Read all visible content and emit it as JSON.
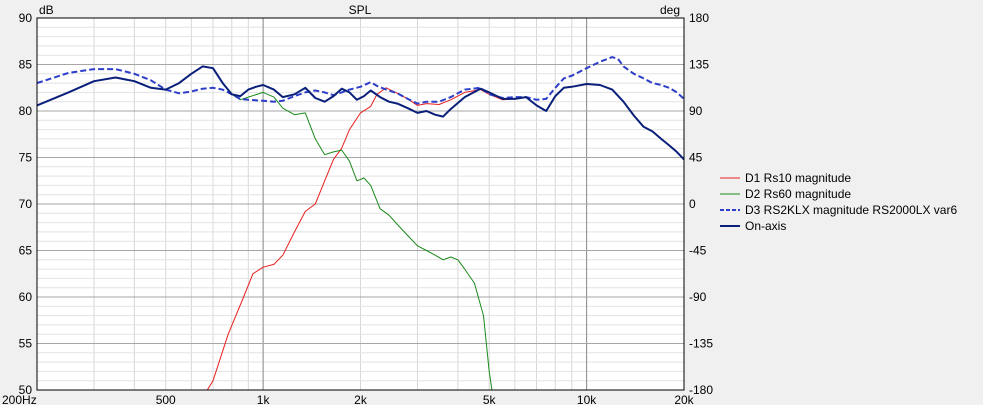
{
  "chart_data": {
    "type": "line",
    "title": "SPL",
    "y_unit_left": "dB",
    "y_unit_right": "deg",
    "x_scale": "log",
    "xlim": [
      200,
      20000
    ],
    "ylim": [
      50,
      90
    ],
    "y2lim": [
      -180,
      180
    ],
    "grid": true,
    "legend_position": "right",
    "x_ticks": [
      {
        "value": 200,
        "label": "200Hz"
      },
      {
        "value": 500,
        "label": "500"
      },
      {
        "value": 1000,
        "label": "1k"
      },
      {
        "value": 2000,
        "label": "2k"
      },
      {
        "value": 5000,
        "label": "5k"
      },
      {
        "value": 10000,
        "label": "10k"
      },
      {
        "value": 20000,
        "label": "20k"
      }
    ],
    "y_ticks": [
      {
        "value": 90,
        "label": "90"
      },
      {
        "value": 85,
        "label": "85"
      },
      {
        "value": 80,
        "label": "80"
      },
      {
        "value": 75,
        "label": "75"
      },
      {
        "value": 70,
        "label": "70"
      },
      {
        "value": 65,
        "label": "65"
      },
      {
        "value": 60,
        "label": "60"
      },
      {
        "value": 55,
        "label": "55"
      },
      {
        "value": 50,
        "label": "50"
      }
    ],
    "y2_ticks": [
      {
        "value": 180,
        "label": "180"
      },
      {
        "value": 135,
        "label": "135"
      },
      {
        "value": 90,
        "label": "90"
      },
      {
        "value": 45,
        "label": "45"
      },
      {
        "value": 0,
        "label": "0"
      },
      {
        "value": -45,
        "label": "-45"
      },
      {
        "value": -90,
        "label": "-90"
      },
      {
        "value": -135,
        "label": "-135"
      },
      {
        "value": -180,
        "label": "-180"
      }
    ],
    "series": [
      {
        "name": "D1 Rs10 magnitude",
        "color": "#e8201e",
        "style": "solid",
        "width": 1,
        "points": [
          [
            620,
            48
          ],
          [
            700,
            51
          ],
          [
            780,
            56
          ],
          [
            870,
            60
          ],
          [
            930,
            62.5
          ],
          [
            1000,
            63.2
          ],
          [
            1080,
            63.5
          ],
          [
            1150,
            64.5
          ],
          [
            1250,
            67
          ],
          [
            1350,
            69.2
          ],
          [
            1450,
            70
          ],
          [
            1550,
            72.5
          ],
          [
            1650,
            74.8
          ],
          [
            1750,
            76
          ],
          [
            1850,
            78
          ],
          [
            2000,
            79.8
          ],
          [
            2150,
            80.5
          ],
          [
            2250,
            81.8
          ],
          [
            2400,
            82.5
          ],
          [
            2600,
            81.9
          ],
          [
            2800,
            81.3
          ],
          [
            3000,
            80.6
          ],
          [
            3200,
            80.8
          ],
          [
            3500,
            80.7
          ],
          [
            3800,
            81.2
          ],
          [
            4200,
            82.0
          ],
          [
            4700,
            82.3
          ],
          [
            5000,
            81.8
          ],
          [
            5500,
            81.2
          ],
          [
            6000,
            81.3
          ],
          [
            6500,
            81.5
          ],
          [
            7000,
            80.6
          ],
          [
            7500,
            80.0
          ],
          [
            8000,
            81.6
          ],
          [
            8500,
            82.5
          ],
          [
            9000,
            82.6
          ],
          [
            10000,
            82.9
          ],
          [
            11000,
            82.8
          ],
          [
            12000,
            82.3
          ],
          [
            13000,
            81.0
          ],
          [
            14000,
            79.5
          ],
          [
            15000,
            78.3
          ],
          [
            16000,
            77.8
          ],
          [
            17000,
            77.0
          ],
          [
            18000,
            76.3
          ],
          [
            19000,
            75.6
          ],
          [
            20000,
            74.8
          ]
        ]
      },
      {
        "name": "D2 Rs60 magnitude",
        "color": "#1a8a1a",
        "style": "solid",
        "width": 1,
        "points": [
          [
            200,
            80.6
          ],
          [
            250,
            82
          ],
          [
            300,
            83.2
          ],
          [
            350,
            83.6
          ],
          [
            400,
            83.2
          ],
          [
            450,
            82.5
          ],
          [
            500,
            82.3
          ],
          [
            550,
            83.0
          ],
          [
            600,
            84.0
          ],
          [
            650,
            84.8
          ],
          [
            700,
            84.6
          ],
          [
            750,
            83
          ],
          [
            800,
            81.8
          ],
          [
            850,
            81.2
          ],
          [
            900,
            81.5
          ],
          [
            1000,
            82
          ],
          [
            1080,
            81.5
          ],
          [
            1150,
            80.3
          ],
          [
            1250,
            79.6
          ],
          [
            1350,
            79.8
          ],
          [
            1450,
            77.0
          ],
          [
            1550,
            75.3
          ],
          [
            1650,
            75.6
          ],
          [
            1750,
            75.8
          ],
          [
            1850,
            74.6
          ],
          [
            1950,
            72.5
          ],
          [
            2050,
            72.8
          ],
          [
            2150,
            72.0
          ],
          [
            2300,
            69.5
          ],
          [
            2450,
            68.8
          ],
          [
            2600,
            67.8
          ],
          [
            2800,
            66.6
          ],
          [
            3000,
            65.5
          ],
          [
            3200,
            65.0
          ],
          [
            3400,
            64.5
          ],
          [
            3600,
            64.0
          ],
          [
            3800,
            64.3
          ],
          [
            4000,
            64.0
          ],
          [
            4200,
            63.0
          ],
          [
            4500,
            61.5
          ],
          [
            4800,
            58.0
          ],
          [
            5000,
            52.0
          ],
          [
            5200,
            48.0
          ]
        ]
      },
      {
        "name": "D3 RS2KLX magnitude RS2000LX var6",
        "color": "#2d3ec8",
        "style": "dashed",
        "width": 2,
        "points": [
          [
            200,
            83
          ],
          [
            250,
            84.1
          ],
          [
            300,
            84.5
          ],
          [
            350,
            84.5
          ],
          [
            400,
            84.0
          ],
          [
            450,
            83.3
          ],
          [
            500,
            82.3
          ],
          [
            550,
            81.9
          ],
          [
            600,
            82.1
          ],
          [
            650,
            82.4
          ],
          [
            700,
            82.5
          ],
          [
            750,
            82.3
          ],
          [
            800,
            81.8
          ],
          [
            850,
            81.3
          ],
          [
            900,
            81.2
          ],
          [
            1000,
            81.1
          ],
          [
            1080,
            81.0
          ],
          [
            1150,
            81.1
          ],
          [
            1250,
            81.6
          ],
          [
            1350,
            82.0
          ],
          [
            1450,
            82.2
          ],
          [
            1550,
            82.0
          ],
          [
            1650,
            81.7
          ],
          [
            1750,
            82.0
          ],
          [
            1850,
            82.3
          ],
          [
            2000,
            82.6
          ],
          [
            2150,
            83.1
          ],
          [
            2250,
            82.7
          ],
          [
            2400,
            82.3
          ],
          [
            2600,
            81.9
          ],
          [
            2800,
            81.3
          ],
          [
            3000,
            80.8
          ],
          [
            3200,
            81.0
          ],
          [
            3500,
            81.0
          ],
          [
            3800,
            81.5
          ],
          [
            4200,
            82.3
          ],
          [
            4700,
            82.5
          ],
          [
            5000,
            81.8
          ],
          [
            5500,
            81.4
          ],
          [
            6000,
            81.5
          ],
          [
            6500,
            81.5
          ],
          [
            7000,
            81.2
          ],
          [
            7500,
            81.3
          ],
          [
            8000,
            82.5
          ],
          [
            8500,
            83.5
          ],
          [
            9000,
            83.8
          ],
          [
            10000,
            84.6
          ],
          [
            11000,
            85.3
          ],
          [
            12000,
            85.8
          ],
          [
            12500,
            85.6
          ],
          [
            13000,
            84.8
          ],
          [
            14000,
            84.0
          ],
          [
            15000,
            83.5
          ],
          [
            16000,
            83.0
          ],
          [
            17000,
            82.8
          ],
          [
            18000,
            82.5
          ],
          [
            19000,
            82.0
          ],
          [
            20000,
            81.3
          ]
        ]
      },
      {
        "name": "On-axis",
        "color": "#0a1f7a",
        "style": "solid",
        "width": 2,
        "points": [
          [
            200,
            80.6
          ],
          [
            250,
            82
          ],
          [
            300,
            83.2
          ],
          [
            350,
            83.6
          ],
          [
            400,
            83.2
          ],
          [
            450,
            82.5
          ],
          [
            500,
            82.3
          ],
          [
            550,
            83.0
          ],
          [
            600,
            84.0
          ],
          [
            650,
            84.8
          ],
          [
            700,
            84.6
          ],
          [
            750,
            83
          ],
          [
            800,
            81.8
          ],
          [
            850,
            81.6
          ],
          [
            900,
            82.3
          ],
          [
            950,
            82.6
          ],
          [
            1000,
            82.8
          ],
          [
            1080,
            82.3
          ],
          [
            1150,
            81.5
          ],
          [
            1250,
            81.8
          ],
          [
            1350,
            82.5
          ],
          [
            1450,
            81.4
          ],
          [
            1550,
            81.0
          ],
          [
            1650,
            81.6
          ],
          [
            1750,
            82.4
          ],
          [
            1850,
            82.0
          ],
          [
            1950,
            81.2
          ],
          [
            2050,
            81.6
          ],
          [
            2150,
            82.2
          ],
          [
            2300,
            81.5
          ],
          [
            2450,
            81.0
          ],
          [
            2600,
            80.8
          ],
          [
            2800,
            80.3
          ],
          [
            3000,
            79.8
          ],
          [
            3200,
            80.0
          ],
          [
            3400,
            79.6
          ],
          [
            3600,
            79.4
          ],
          [
            3800,
            80.2
          ],
          [
            4200,
            81.5
          ],
          [
            4700,
            82.4
          ],
          [
            5000,
            82.0
          ],
          [
            5500,
            81.3
          ],
          [
            6000,
            81.3
          ],
          [
            6500,
            81.5
          ],
          [
            7000,
            80.6
          ],
          [
            7500,
            80.0
          ],
          [
            8000,
            81.6
          ],
          [
            8500,
            82.5
          ],
          [
            9000,
            82.6
          ],
          [
            10000,
            82.9
          ],
          [
            11000,
            82.8
          ],
          [
            12000,
            82.3
          ],
          [
            13000,
            81.0
          ],
          [
            14000,
            79.5
          ],
          [
            15000,
            78.3
          ],
          [
            16000,
            77.8
          ],
          [
            17000,
            77.0
          ],
          [
            18000,
            76.3
          ],
          [
            19000,
            75.6
          ],
          [
            20000,
            74.8
          ]
        ]
      }
    ]
  }
}
